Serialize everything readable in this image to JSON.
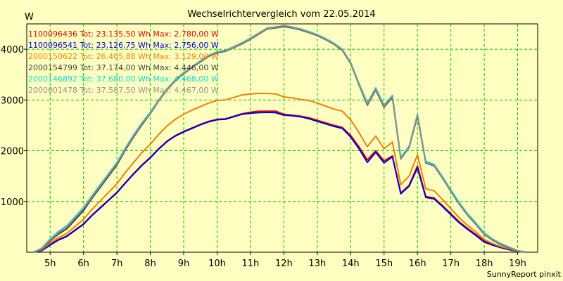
{
  "chart_data": {
    "type": "line",
    "title": "Wechselrichtervergleich vom 22.05.2014",
    "ylabel": "W",
    "xlabel": "",
    "footer": "SunnyReport pinxit",
    "xlim": [
      4.3,
      19.6
    ],
    "ylim": [
      0,
      4500
    ],
    "yticks": [
      1000,
      2000,
      3000,
      4000
    ],
    "xticks": [
      5,
      6,
      7,
      8,
      9,
      10,
      11,
      12,
      13,
      14,
      15,
      16,
      17,
      18,
      19
    ],
    "xtick_labels": [
      "5h",
      "6h",
      "7h",
      "8h",
      "9h",
      "10h",
      "11h",
      "12h",
      "13h",
      "14h",
      "15h",
      "16h",
      "17h",
      "18h",
      "19h"
    ],
    "grid": true,
    "legend_position": "top-left",
    "x": [
      4.5,
      4.75,
      5.0,
      5.25,
      5.5,
      5.75,
      6.0,
      6.25,
      6.5,
      6.75,
      7.0,
      7.25,
      7.5,
      7.75,
      8.0,
      8.25,
      8.5,
      8.75,
      9.0,
      9.25,
      9.5,
      9.75,
      10.0,
      10.25,
      10.5,
      10.75,
      11.0,
      11.25,
      11.5,
      11.75,
      12.0,
      12.25,
      12.5,
      12.75,
      13.0,
      13.25,
      13.5,
      13.75,
      14.0,
      14.25,
      14.5,
      14.75,
      15.0,
      15.25,
      15.5,
      15.75,
      16.0,
      16.25,
      16.5,
      16.75,
      17.0,
      17.25,
      17.5,
      17.75,
      18.0,
      18.25,
      18.5,
      18.75,
      19.0,
      19.25
    ],
    "series": [
      {
        "name": "1100096436",
        "legend": "1100096436 Tot: 23.135,50 Wh Max: 2.780,00 W",
        "color": "#e00000",
        "values": [
          0,
          40,
          150,
          250,
          320,
          440,
          560,
          730,
          880,
          1030,
          1180,
          1370,
          1550,
          1720,
          1870,
          2040,
          2190,
          2300,
          2380,
          2450,
          2520,
          2580,
          2620,
          2630,
          2680,
          2730,
          2760,
          2780,
          2780,
          2780,
          2720,
          2700,
          2680,
          2650,
          2600,
          2550,
          2500,
          2460,
          2300,
          2080,
          1820,
          2000,
          1800,
          1900,
          1170,
          1320,
          1700,
          1100,
          1070,
          920,
          760,
          600,
          470,
          350,
          220,
          150,
          100,
          60,
          20,
          0
        ]
      },
      {
        "name": "1100096541",
        "legend": "1100096541 Tot: 23.126,75 Wh Max: 2.756,00 W",
        "color": "#0000dd",
        "values": [
          0,
          30,
          140,
          240,
          310,
          430,
          550,
          720,
          870,
          1020,
          1170,
          1360,
          1540,
          1710,
          1860,
          2030,
          2180,
          2290,
          2370,
          2440,
          2510,
          2570,
          2610,
          2620,
          2670,
          2720,
          2740,
          2750,
          2756,
          2750,
          2700,
          2690,
          2670,
          2630,
          2580,
          2530,
          2480,
          2440,
          2270,
          2040,
          1770,
          1970,
          1760,
          1880,
          1150,
          1300,
          1660,
          1080,
          1050,
          900,
          740,
          580,
          450,
          330,
          200,
          140,
          90,
          50,
          15,
          0
        ]
      },
      {
        "name": "2000150622",
        "legend": "2000150622 Tot: 26.405,88 Wh Max: 3.129,00 W",
        "color": "#f08000",
        "values": [
          0,
          50,
          180,
          290,
          370,
          510,
          650,
          840,
          1010,
          1180,
          1350,
          1570,
          1770,
          1960,
          2130,
          2320,
          2490,
          2620,
          2720,
          2800,
          2870,
          2940,
          2990,
          3000,
          3050,
          3100,
          3120,
          3129,
          3129,
          3120,
          3060,
          3040,
          3010,
          2990,
          2940,
          2880,
          2820,
          2780,
          2610,
          2360,
          2080,
          2290,
          2040,
          2170,
          1330,
          1500,
          1920,
          1250,
          1210,
          1040,
          860,
          680,
          530,
          400,
          250,
          170,
          110,
          70,
          20,
          0
        ]
      },
      {
        "name": "2000154799",
        "legend": "2000154799 Tot: 37.174,00 Wh Max: 4.446,00 W",
        "color": "#404040",
        "values": [
          0,
          60,
          220,
          360,
          460,
          640,
          820,
          1060,
          1280,
          1500,
          1720,
          2010,
          2270,
          2510,
          2730,
          2980,
          3200,
          3380,
          3520,
          3640,
          3750,
          3860,
          3930,
          3960,
          4030,
          4110,
          4200,
          4300,
          4400,
          4420,
          4446,
          4420,
          4380,
          4330,
          4270,
          4190,
          4100,
          3980,
          3720,
          3300,
          2900,
          3200,
          2860,
          3050,
          1840,
          2060,
          2680,
          1760,
          1700,
          1460,
          1200,
          950,
          730,
          550,
          350,
          240,
          150,
          90,
          30,
          0
        ]
      },
      {
        "name": "2000146892",
        "legend": "2000146892 Tot: 37.680,00 Wh Max: 4.468,00 W",
        "color": "#00dddd",
        "values": [
          0,
          80,
          260,
          410,
          520,
          700,
          880,
          1110,
          1330,
          1550,
          1770,
          2050,
          2310,
          2550,
          2760,
          3000,
          3220,
          3400,
          3540,
          3660,
          3770,
          3880,
          3950,
          3980,
          4050,
          4130,
          4220,
          4320,
          4420,
          4440,
          4468,
          4440,
          4400,
          4350,
          4290,
          4210,
          4120,
          4000,
          3740,
          3330,
          2940,
          3240,
          2900,
          3090,
          1870,
          2090,
          2720,
          1790,
          1730,
          1490,
          1230,
          980,
          760,
          580,
          380,
          260,
          170,
          100,
          35,
          0
        ]
      },
      {
        "name": "2000001478",
        "legend": "2000001478 Tot: 37.587,50 Wh Max: 4.467,00 W",
        "color": "#909090",
        "values": [
          0,
          70,
          240,
          390,
          500,
          680,
          860,
          1090,
          1310,
          1530,
          1750,
          2030,
          2290,
          2530,
          2740,
          2990,
          3210,
          3390,
          3530,
          3650,
          3760,
          3870,
          3940,
          3970,
          4040,
          4120,
          4210,
          4310,
          4410,
          4430,
          4467,
          4430,
          4390,
          4340,
          4280,
          4200,
          4110,
          3990,
          3730,
          3310,
          2920,
          3220,
          2880,
          3070,
          1850,
          2070,
          2700,
          1770,
          1710,
          1470,
          1210,
          960,
          740,
          560,
          360,
          250,
          160,
          95,
          30,
          0
        ]
      }
    ]
  }
}
